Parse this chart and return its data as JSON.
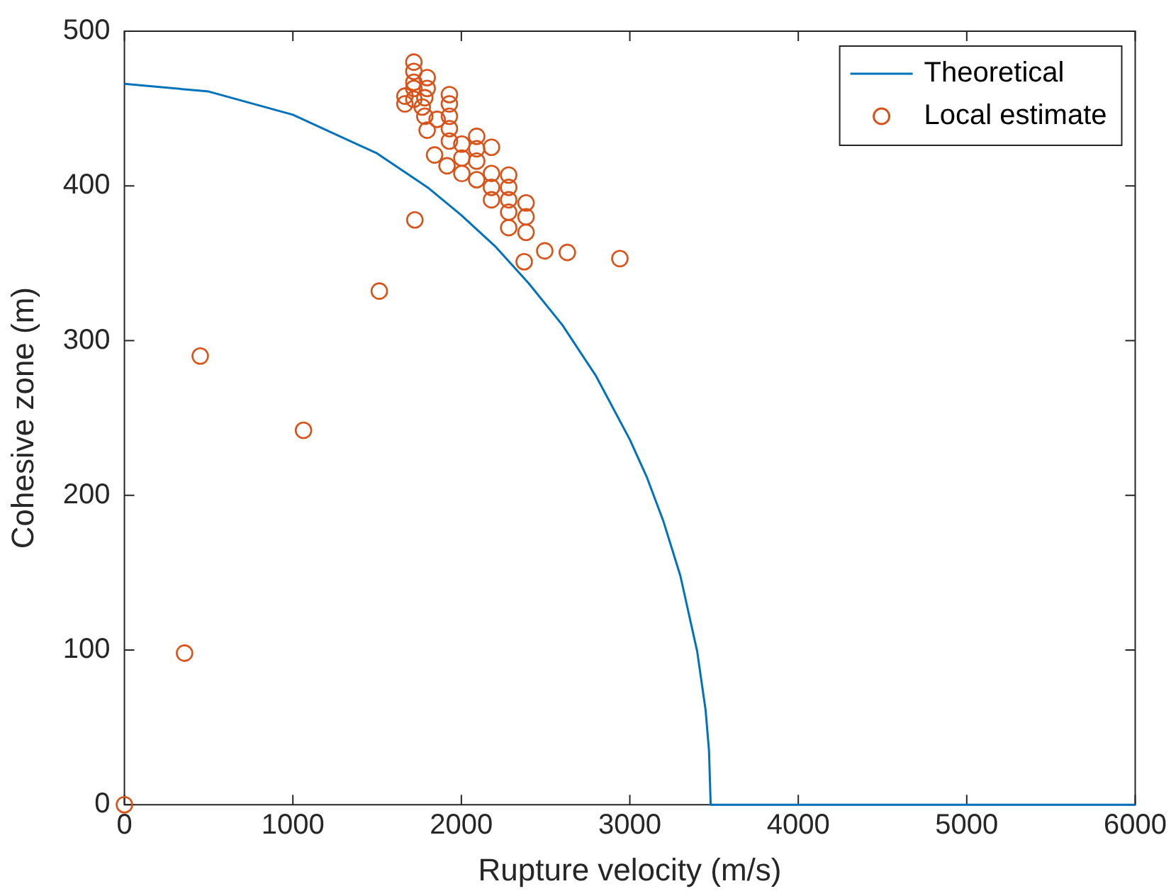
{
  "chart_data": {
    "type": "scatter",
    "xlabel": "Rupture velocity (m/s)",
    "ylabel": "Cohesive zone (m)",
    "xlim": [
      0,
      6000
    ],
    "xticks": [
      0,
      1000,
      2000,
      3000,
      4000,
      5000,
      6000
    ],
    "ylim": [
      0,
      500
    ],
    "yticks": [
      0,
      100,
      200,
      300,
      400,
      500
    ],
    "grid": false,
    "legend": "top right",
    "marker": "circle",
    "series": [
      {
        "name": "Theoretical",
        "type": "line",
        "color": "#0072bd",
        "marker": "none",
        "x": [
          0,
          500,
          1000,
          1500,
          1800,
          2000,
          2200,
          2400,
          2600,
          2800,
          3000,
          3100,
          3200,
          3300,
          3400,
          3450,
          3470,
          3480,
          6000
        ],
        "values": [
          466,
          461,
          446,
          421,
          399,
          381,
          361,
          337,
          310,
          277,
          236,
          212,
          183,
          148,
          99,
          61,
          35,
          0,
          0
        ]
      },
      {
        "name": "Local estimate",
        "color": "#d95319",
        "x": [
          0,
          357,
          450,
          1063,
          1513,
          1724,
          2373,
          2495,
          2629,
          2941,
          1718,
          1718,
          1718,
          1718,
          1718,
          1665,
          1665,
          1797,
          1797,
          1783,
          1768,
          1783,
          1856,
          1929,
          1929,
          1929,
          1797,
          1841,
          1929,
          1929,
          1915,
          2003,
          2003,
          2003,
          2091,
          2091,
          2091,
          2179,
          2091,
          2179,
          2179,
          2281,
          2281,
          2281,
          2281,
          2281,
          2384,
          2384,
          2384,
          2179
        ],
        "values": [
          0,
          98,
          290,
          242,
          332,
          378,
          351,
          358,
          357,
          353,
          480,
          474,
          467,
          463,
          456,
          458,
          453,
          470,
          463,
          457,
          451,
          445,
          443,
          459,
          453,
          445,
          436,
          420,
          437,
          429,
          413,
          427,
          418,
          408,
          432,
          424,
          416,
          425,
          404,
          408,
          399,
          407,
          399,
          391,
          383,
          373,
          389,
          380,
          370,
          391
        ]
      }
    ]
  }
}
